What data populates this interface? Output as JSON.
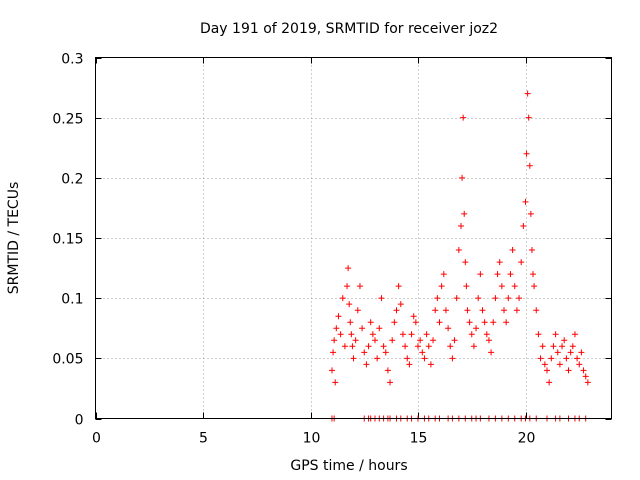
{
  "chart_data": {
    "type": "scatter",
    "title": "Day 191 of 2019, SRMTID for receiver joz2",
    "xlabel": "GPS time / hours",
    "ylabel": "SRMTID / TECUs",
    "xlim": [
      0,
      24
    ],
    "ylim": [
      0,
      0.3
    ],
    "xticks": [
      0,
      5,
      10,
      15,
      20
    ],
    "yticks": [
      0,
      0.05,
      0.1,
      0.15,
      0.2,
      0.25,
      0.3
    ],
    "xtick_labels": [
      "0",
      "5",
      "10",
      "15",
      "20"
    ],
    "ytick_labels": [
      "0",
      "0.05",
      "0.1",
      "0.15",
      "0.2",
      "0.25",
      "0.3"
    ],
    "grid": true,
    "legend": "none",
    "marker": "plus",
    "color": "#ff0000",
    "series": [
      {
        "x": [
          11.0,
          11.05,
          11.1,
          11.15,
          11.2,
          11.3,
          11.4,
          11.5,
          11.6,
          11.7,
          11.75,
          11.8,
          11.85,
          11.9,
          11.95,
          12.0,
          12.1,
          12.2,
          12.3,
          12.4,
          12.5,
          12.6,
          12.7,
          12.8,
          12.9,
          13.0,
          13.1,
          13.2,
          13.3,
          13.4,
          13.5,
          13.6,
          13.7,
          13.8,
          13.9,
          14.0,
          14.1,
          14.2,
          14.3,
          14.4,
          14.5,
          14.6,
          14.7,
          14.8,
          14.9,
          15.0,
          15.1,
          15.2,
          15.3,
          15.4,
          15.5,
          15.6,
          15.7,
          15.8,
          15.9,
          16.0,
          16.1,
          16.2,
          16.3,
          16.4,
          16.5,
          16.6,
          16.7,
          16.8,
          16.9,
          17.0,
          17.05,
          17.1,
          17.15,
          17.2,
          17.25,
          17.3,
          17.4,
          17.5,
          17.6,
          17.7,
          17.8,
          17.9,
          18.0,
          18.1,
          18.2,
          18.3,
          18.4,
          18.5,
          18.6,
          18.7,
          18.8,
          18.9,
          19.0,
          19.1,
          19.2,
          19.3,
          19.4,
          19.5,
          19.6,
          19.7,
          19.8,
          19.9,
          20.0,
          20.05,
          20.1,
          20.15,
          20.2,
          20.25,
          20.3,
          20.35,
          20.4,
          20.5,
          20.6,
          20.7,
          20.8,
          20.9,
          21.0,
          21.1,
          21.2,
          21.3,
          21.4,
          21.5,
          21.6,
          21.7,
          21.8,
          21.9,
          22.0,
          22.1,
          22.2,
          22.3,
          22.4,
          22.5,
          22.6,
          22.7,
          22.8,
          22.9
        ],
        "y": [
          0.04,
          0.055,
          0.065,
          0.03,
          0.075,
          0.085,
          0.07,
          0.1,
          0.06,
          0.11,
          0.125,
          0.095,
          0.08,
          0.07,
          0.06,
          0.05,
          0.065,
          0.09,
          0.11,
          0.075,
          0.055,
          0.045,
          0.06,
          0.08,
          0.07,
          0.065,
          0.05,
          0.075,
          0.1,
          0.06,
          0.055,
          0.04,
          0.03,
          0.065,
          0.08,
          0.09,
          0.11,
          0.095,
          0.07,
          0.06,
          0.05,
          0.045,
          0.07,
          0.085,
          0.08,
          0.06,
          0.065,
          0.055,
          0.05,
          0.07,
          0.06,
          0.045,
          0.065,
          0.09,
          0.1,
          0.08,
          0.11,
          0.12,
          0.09,
          0.075,
          0.06,
          0.05,
          0.065,
          0.1,
          0.14,
          0.16,
          0.2,
          0.25,
          0.17,
          0.13,
          0.11,
          0.09,
          0.08,
          0.07,
          0.06,
          0.075,
          0.1,
          0.12,
          0.09,
          0.08,
          0.07,
          0.065,
          0.055,
          0.08,
          0.1,
          0.12,
          0.13,
          0.11,
          0.09,
          0.08,
          0.1,
          0.12,
          0.14,
          0.11,
          0.09,
          0.1,
          0.13,
          0.16,
          0.18,
          0.22,
          0.27,
          0.25,
          0.21,
          0.17,
          0.14,
          0.12,
          0.11,
          0.09,
          0.07,
          0.05,
          0.06,
          0.045,
          0.04,
          0.03,
          0.05,
          0.06,
          0.07,
          0.055,
          0.045,
          0.06,
          0.065,
          0.05,
          0.04,
          0.055,
          0.06,
          0.07,
          0.05,
          0.045,
          0.055,
          0.04,
          0.035,
          0.03
        ]
      },
      {
        "x": [
          11.0,
          11.1,
          12.5,
          12.7,
          12.8,
          13.0,
          13.2,
          13.4,
          13.6,
          13.7,
          14.0,
          14.2,
          14.5,
          14.7,
          15.0,
          15.3,
          15.5,
          15.8,
          16.0,
          16.4,
          16.6,
          16.9,
          17.2,
          17.5,
          17.7,
          17.9,
          18.3,
          18.6,
          18.9,
          19.2,
          19.5,
          19.8,
          20.0,
          20.2,
          20.5,
          21.0,
          21.4,
          21.6,
          22.0,
          22.3,
          22.5,
          22.8
        ],
        "y": [
          0,
          0,
          0,
          0,
          0,
          0,
          0,
          0,
          0,
          0,
          0,
          0,
          0,
          0,
          0,
          0,
          0,
          0,
          0,
          0,
          0,
          0,
          0,
          0,
          0,
          0,
          0,
          0,
          0,
          0,
          0,
          0,
          0,
          0,
          0,
          0,
          0,
          0,
          0,
          0,
          0,
          0
        ]
      }
    ]
  }
}
